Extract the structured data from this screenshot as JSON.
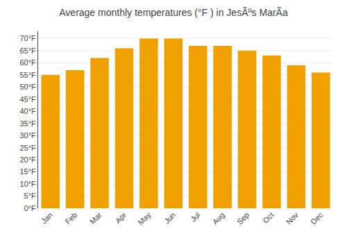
{
  "chart_data": {
    "type": "bar",
    "title": "Average monthly temperatures (°F ) in JesÃºs MarÃ­a",
    "categories": [
      "Jan",
      "Feb",
      "Mar",
      "Apr",
      "May",
      "Jun",
      "Jul",
      "Aug",
      "Sep",
      "Oct",
      "Nov",
      "Dec"
    ],
    "values": [
      55,
      57,
      62,
      66,
      70,
      70,
      67,
      67,
      65,
      63,
      59,
      56
    ],
    "color": "#F0A000",
    "ylim": [
      0,
      73
    ],
    "yticks": [
      {
        "value": 0,
        "label": "0°F"
      },
      {
        "value": 5,
        "label": "5°F"
      },
      {
        "value": 10,
        "label": "10°F"
      },
      {
        "value": 15,
        "label": "15°F"
      },
      {
        "value": 20,
        "label": "20°F"
      },
      {
        "value": 25,
        "label": "25°F"
      },
      {
        "value": 30,
        "label": "30°F"
      },
      {
        "value": 35,
        "label": "35°F"
      },
      {
        "value": 40,
        "label": "40°F"
      },
      {
        "value": 45,
        "label": "45°F"
      },
      {
        "value": 50,
        "label": "50°F"
      },
      {
        "value": 55,
        "label": "55°F"
      },
      {
        "value": 60,
        "label": "60°F"
      },
      {
        "value": 65,
        "label": "65°F"
      },
      {
        "value": 70,
        "label": "70°F"
      }
    ],
    "grid": true
  }
}
